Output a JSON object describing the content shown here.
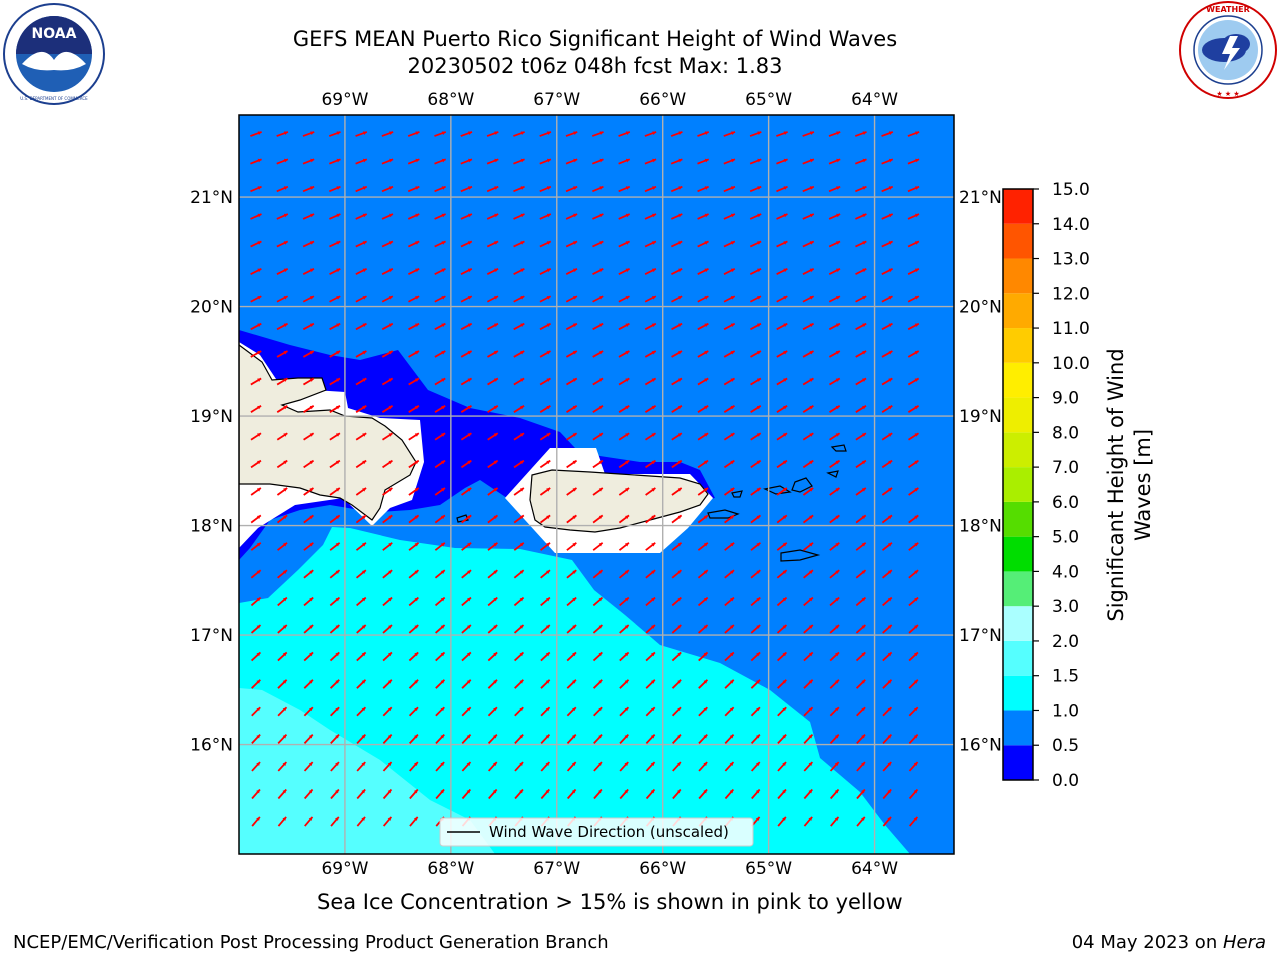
{
  "header": {
    "title_line1": "GEFS MEAN Puerto Rico Significant Height of Wind Waves",
    "title_line2": "20230502 t06z 048h fcst   Max: 1.83"
  },
  "logos": {
    "left_text": "NOAA",
    "left_ring_text": "NATIONAL OCEANIC AND ATMOSPHERIC ADMINISTRATION · U.S. DEPARTMENT OF COMMERCE",
    "right_ring_text": "NATIONAL WEATHER SERVICE"
  },
  "map": {
    "lon_labels": [
      "69°W",
      "68°W",
      "67°W",
      "66°W",
      "65°W",
      "64°W"
    ],
    "lat_labels": [
      "21°N",
      "20°N",
      "19°N",
      "18°N",
      "17°N",
      "16°N"
    ],
    "lon_values": [
      -69,
      -68,
      -67,
      -66,
      -65,
      -64
    ],
    "lat_values": [
      21,
      20,
      19,
      18,
      17,
      16
    ],
    "extent": {
      "lon_min": -70.0,
      "lon_max": -63.25,
      "lat_min": 15.0,
      "lat_max": 21.75
    },
    "legend_label": "Wind Wave Direction (unscaled)",
    "arrow_color": "#ff0000",
    "land_color": "#efedde",
    "grid_color": "#b0b0b0"
  },
  "colorbar": {
    "label": "Significant Height of Wind Waves [m]",
    "label_line1": "Significant Height of Wind",
    "label_line2": "Waves [m]",
    "ticks": [
      "15.0",
      "14.0",
      "13.0",
      "12.0",
      "11.0",
      "10.0",
      "9.0",
      "8.0",
      "7.0",
      "6.0",
      "5.0",
      "4.0",
      "3.0",
      "2.0",
      "1.5",
      "1.0",
      "0.5",
      "0.0"
    ],
    "bins": [
      {
        "from": 0.0,
        "to": 0.5,
        "color": "#0000ff"
      },
      {
        "from": 0.5,
        "to": 1.0,
        "color": "#0080ff"
      },
      {
        "from": 1.0,
        "to": 1.5,
        "color": "#00ffff"
      },
      {
        "from": 1.5,
        "to": 2.0,
        "color": "#55ffff"
      },
      {
        "from": 2.0,
        "to": 3.0,
        "color": "#aaffff"
      },
      {
        "from": 3.0,
        "to": 4.0,
        "color": "#55ee77"
      },
      {
        "from": 4.0,
        "to": 5.0,
        "color": "#00dd00"
      },
      {
        "from": 5.0,
        "to": 6.0,
        "color": "#55dd00"
      },
      {
        "from": 6.0,
        "to": 7.0,
        "color": "#aaee00"
      },
      {
        "from": 7.0,
        "to": 8.0,
        "color": "#ccee00"
      },
      {
        "from": 8.0,
        "to": 9.0,
        "color": "#eeee00"
      },
      {
        "from": 9.0,
        "to": 10.0,
        "color": "#ffee00"
      },
      {
        "from": 10.0,
        "to": 11.0,
        "color": "#ffcc00"
      },
      {
        "from": 11.0,
        "to": 12.0,
        "color": "#ffaa00"
      },
      {
        "from": 12.0,
        "to": 13.0,
        "color": "#ff8800"
      },
      {
        "from": 13.0,
        "to": 14.0,
        "color": "#ff5500"
      },
      {
        "from": 14.0,
        "to": 15.0,
        "color": "#ff2200"
      }
    ]
  },
  "caption": "Sea Ice Concentration > 15% is shown in pink to yellow",
  "footer": {
    "left": "NCEP/EMC/Verification Post Processing Product Generation Branch",
    "right_date": "04 May 2023 on ",
    "right_host": "Hera"
  }
}
